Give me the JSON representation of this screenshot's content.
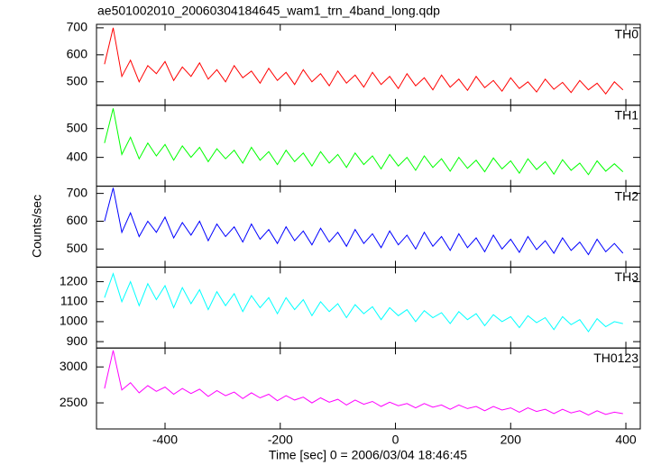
{
  "chart_data": {
    "type": "line",
    "title": "ae501002010_20060304184645_wam1_trn_4band_long.qdp",
    "xlabel": "Time [sec] 0 = 2006/03/04 18:46:45",
    "ylabel": "Counts/sec",
    "xlim": [
      -519,
      425
    ],
    "xticks": [
      -400,
      -200,
      0,
      200,
      400
    ],
    "grid": false,
    "x": [
      -505,
      -490,
      -475,
      -460,
      -445,
      -430,
      -415,
      -400,
      -385,
      -370,
      -355,
      -340,
      -325,
      -310,
      -295,
      -280,
      -265,
      -250,
      -235,
      -220,
      -205,
      -190,
      -175,
      -160,
      -145,
      -130,
      -115,
      -100,
      -85,
      -70,
      -55,
      -40,
      -25,
      -10,
      5,
      20,
      35,
      50,
      65,
      80,
      95,
      110,
      125,
      140,
      155,
      170,
      185,
      200,
      215,
      230,
      245,
      260,
      275,
      290,
      305,
      320,
      335,
      350,
      365,
      380,
      395
    ],
    "panels": [
      {
        "ylim": [
          413,
          713
        ],
        "yticks": [
          500,
          600,
          700
        ],
        "series": [
          {
            "name": "TH0",
            "color": "#ff0000",
            "values": [
              565,
              700,
              520,
              580,
              500,
              560,
              530,
              575,
              505,
              555,
              520,
              570,
              510,
              545,
              500,
              560,
              515,
              540,
              495,
              550,
              505,
              535,
              490,
              545,
              500,
              530,
              485,
              540,
              495,
              525,
              480,
              535,
              490,
              520,
              475,
              530,
              485,
              515,
              470,
              525,
              480,
              510,
              468,
              520,
              478,
              505,
              465,
              515,
              475,
              500,
              462,
              510,
              472,
              498,
              460,
              505,
              470,
              495,
              455,
              500,
              470
            ]
          }
        ]
      },
      {
        "ylim": [
          300,
          581
        ],
        "yticks": [
          400,
          500
        ],
        "series": [
          {
            "name": "TH1",
            "color": "#00ff00",
            "values": [
              450,
              570,
              410,
              470,
              395,
              450,
              405,
              445,
              390,
              440,
              400,
              435,
              385,
              430,
              395,
              425,
              380,
              435,
              390,
              420,
              375,
              425,
              385,
              415,
              370,
              420,
              380,
              410,
              365,
              415,
              375,
              405,
              360,
              410,
              370,
              400,
              355,
              405,
              365,
              395,
              352,
              400,
              362,
              390,
              350,
              398,
              360,
              388,
              345,
              395,
              358,
              385,
              342,
              392,
              355,
              380,
              340,
              388,
              352,
              378,
              350
            ]
          }
        ]
      },
      {
        "ylim": [
          435,
          726
        ],
        "yticks": [
          500,
          600,
          700
        ],
        "series": [
          {
            "name": "TH2",
            "color": "#0000ff",
            "values": [
              600,
              720,
              560,
              630,
              545,
              600,
              560,
              615,
              540,
              595,
              550,
              600,
              530,
              590,
              545,
              580,
              525,
              590,
              535,
              570,
              520,
              580,
              530,
              565,
              515,
              575,
              525,
              560,
              510,
              570,
              520,
              555,
              505,
              565,
              515,
              550,
              500,
              560,
              510,
              545,
              495,
              555,
              505,
              540,
              490,
              550,
              500,
              535,
              488,
              545,
              498,
              530,
              485,
              540,
              495,
              525,
              480,
              535,
              490,
              520,
              485
            ]
          }
        ]
      },
      {
        "ylim": [
          868,
          1273
        ],
        "yticks": [
          900,
          1000,
          1100,
          1200
        ],
        "series": [
          {
            "name": "TH3",
            "color": "#00ffff",
            "values": [
              1120,
              1240,
              1100,
              1200,
              1080,
              1190,
              1110,
              1180,
              1070,
              1170,
              1090,
              1160,
              1060,
              1150,
              1080,
              1140,
              1050,
              1130,
              1070,
              1120,
              1040,
              1120,
              1060,
              1110,
              1030,
              1100,
              1050,
              1090,
              1020,
              1085,
              1040,
              1075,
              1010,
              1070,
              1030,
              1060,
              1000,
              1055,
              1020,
              1045,
              990,
              1050,
              1010,
              1040,
              980,
              1035,
              1000,
              1025,
              970,
              1030,
              995,
              1020,
              960,
              1025,
              985,
              1010,
              950,
              1015,
              975,
              1000,
              990
            ]
          }
        ]
      },
      {
        "ylim": [
          2137,
          3263
        ],
        "yticks": [
          2500,
          3000
        ],
        "series": [
          {
            "name": "TH0123",
            "color": "#ff00ff",
            "values": [
              2700,
              3230,
              2680,
              2780,
              2640,
              2740,
              2660,
              2720,
              2620,
              2700,
              2630,
              2690,
              2590,
              2670,
              2600,
              2650,
              2560,
              2640,
              2570,
              2620,
              2530,
              2600,
              2540,
              2580,
              2500,
              2570,
              2510,
              2550,
              2470,
              2540,
              2480,
              2520,
              2450,
              2510,
              2460,
              2490,
              2430,
              2490,
              2440,
              2470,
              2410,
              2470,
              2420,
              2450,
              2390,
              2450,
              2400,
              2430,
              2370,
              2430,
              2380,
              2410,
              2350,
              2410,
              2360,
              2390,
              2330,
              2390,
              2340,
              2370,
              2350
            ]
          }
        ]
      }
    ]
  }
}
